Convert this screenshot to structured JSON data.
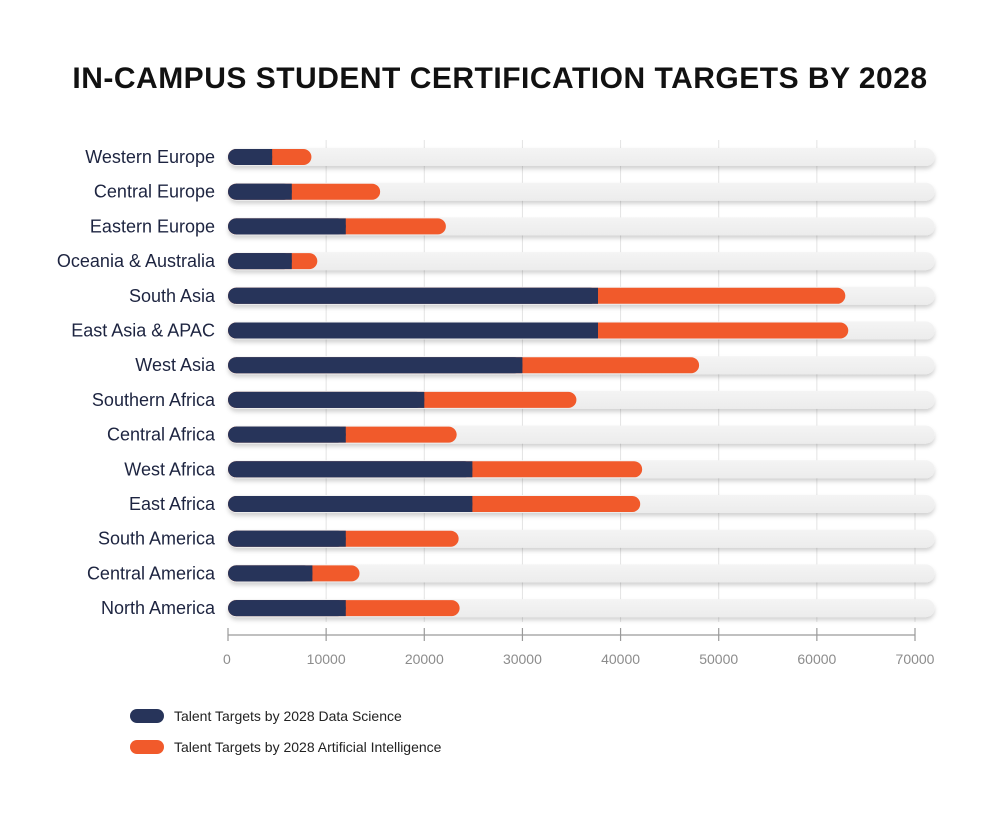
{
  "chart_data": {
    "type": "bar",
    "orientation": "horizontal",
    "stacked": true,
    "title": "IN-CAMPUS STUDENT CERTIFICATION TARGETS BY 2028",
    "xlabel": "",
    "ylabel": "",
    "xlim": [
      0,
      72000
    ],
    "x_ticks": [
      0,
      10000,
      20000,
      30000,
      40000,
      50000,
      60000,
      70000
    ],
    "grid": true,
    "legend_position": "bottom-left",
    "categories": [
      "Western Europe",
      "Central Europe",
      "Eastern Europe",
      "Oceania & Australia",
      "South Asia",
      "East Asia & APAC",
      "West Asia",
      "Southern Africa",
      "Central Africa",
      "West Africa",
      "East Africa",
      "South America",
      "Central America",
      "North America"
    ],
    "series": [
      {
        "name": "Talent Targets by 2028 Data Science",
        "color": "#27345a",
        "values": [
          4500,
          6500,
          12000,
          6500,
          37700,
          37700,
          30000,
          20000,
          12000,
          24900,
          24900,
          12000,
          8600,
          12000
        ]
      },
      {
        "name": "Talent Targets by 2028 Artificial Intelligence",
        "color": "#f15a2b",
        "values": [
          4000,
          9000,
          10200,
          2600,
          25200,
          25500,
          18000,
          15500,
          11300,
          17300,
          17100,
          11500,
          4800,
          11600
        ]
      }
    ]
  }
}
